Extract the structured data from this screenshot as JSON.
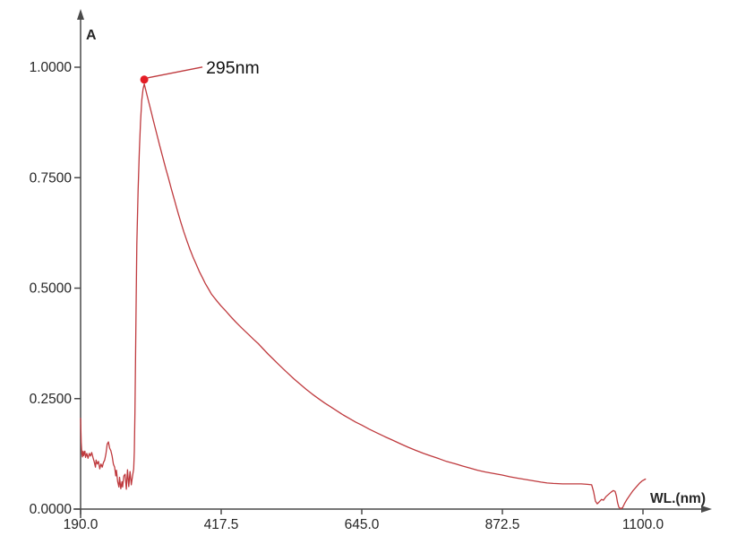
{
  "figure": {
    "background": "#ffffff",
    "description": "UV-Vis absorbance spectrum with peak annotation"
  },
  "chart_data": {
    "type": "line",
    "title": "",
    "xlabel": "WL.(nm)",
    "ylabel": "A",
    "xlim": [
      190,
      1100
    ],
    "ylim": [
      0,
      1.0
    ],
    "grid": false,
    "legend": "none",
    "x_ticks": [
      {
        "value": 190.0,
        "label": "190.0"
      },
      {
        "value": 417.5,
        "label": "417.5"
      },
      {
        "value": 645.0,
        "label": "645.0"
      },
      {
        "value": 872.5,
        "label": "872.5"
      },
      {
        "value": 1100.0,
        "label": "1100.0"
      }
    ],
    "y_ticks": [
      {
        "value": 0.0,
        "label": "0.0000"
      },
      {
        "value": 0.25,
        "label": "0.2500"
      },
      {
        "value": 0.5,
        "label": "0.5000"
      },
      {
        "value": 0.75,
        "label": "0.7500"
      },
      {
        "value": 1.0,
        "label": "1.0000"
      }
    ],
    "annotation": {
      "label": "295nm",
      "peak_wavelength_nm": 295,
      "peak_absorbance": 0.962,
      "marker_x": 293,
      "marker_y": 0.972
    },
    "colors": {
      "axis": "#4a4a4a",
      "tick_label": "#262626",
      "curve": "#bf3a3e",
      "marker": "#e41d25",
      "leader_line": "#bf3a3e",
      "annotation_text": "#111111"
    },
    "series": [
      {
        "name": "absorbance-spectrum",
        "color": "#bf3a3e",
        "points": [
          [
            190,
            0.205
          ],
          [
            191,
            0.15
          ],
          [
            192,
            0.125
          ],
          [
            193,
            0.118
          ],
          [
            194,
            0.131
          ],
          [
            195,
            0.121
          ],
          [
            196,
            0.127
          ],
          [
            197,
            0.131
          ],
          [
            198,
            0.117
          ],
          [
            199,
            0.121
          ],
          [
            200,
            0.126
          ],
          [
            202,
            0.115
          ],
          [
            204,
            0.126
          ],
          [
            206,
            0.12
          ],
          [
            208,
            0.128
          ],
          [
            210,
            0.117
          ],
          [
            212,
            0.107
          ],
          [
            214,
            0.095
          ],
          [
            215,
            0.111
          ],
          [
            217,
            0.102
          ],
          [
            219,
            0.108
          ],
          [
            221,
            0.091
          ],
          [
            223,
            0.102
          ],
          [
            225,
            0.095
          ],
          [
            227,
            0.105
          ],
          [
            229,
            0.111
          ],
          [
            231,
            0.125
          ],
          [
            233,
            0.147
          ],
          [
            235,
            0.152
          ],
          [
            237,
            0.138
          ],
          [
            239,
            0.132
          ],
          [
            241,
            0.12
          ],
          [
            243,
            0.102
          ],
          [
            245,
            0.095
          ],
          [
            247,
            0.075
          ],
          [
            248,
            0.088
          ],
          [
            250,
            0.062
          ],
          [
            252,
            0.05
          ],
          [
            253,
            0.072
          ],
          [
            255,
            0.046
          ],
          [
            257,
            0.062
          ],
          [
            258,
            0.05
          ],
          [
            260,
            0.075
          ],
          [
            262,
            0.079
          ],
          [
            264,
            0.045
          ],
          [
            266,
            0.089
          ],
          [
            268,
            0.051
          ],
          [
            270,
            0.085
          ],
          [
            272,
            0.055
          ],
          [
            274,
            0.075
          ],
          [
            276,
            0.091
          ],
          [
            277,
            0.13
          ],
          [
            278,
            0.22
          ],
          [
            279,
            0.35
          ],
          [
            280,
            0.48
          ],
          [
            281,
            0.6
          ],
          [
            283,
            0.72
          ],
          [
            285,
            0.81
          ],
          [
            287,
            0.875
          ],
          [
            289,
            0.925
          ],
          [
            291,
            0.95
          ],
          [
            293,
            0.962
          ],
          [
            298,
            0.934
          ],
          [
            303,
            0.906
          ],
          [
            308,
            0.878
          ],
          [
            313,
            0.85
          ],
          [
            318,
            0.823
          ],
          [
            323,
            0.796
          ],
          [
            328,
            0.77
          ],
          [
            332,
            0.75
          ],
          [
            337,
            0.724
          ],
          [
            342,
            0.699
          ],
          [
            347,
            0.674
          ],
          [
            352,
            0.65
          ],
          [
            357,
            0.628
          ],
          [
            362,
            0.607
          ],
          [
            367,
            0.588
          ],
          [
            372,
            0.57
          ],
          [
            377,
            0.554
          ],
          [
            382,
            0.538
          ],
          [
            387,
            0.524
          ],
          [
            392,
            0.51
          ],
          [
            397,
            0.498
          ],
          [
            402,
            0.486
          ],
          [
            410,
            0.472
          ],
          [
            417,
            0.46
          ],
          [
            425,
            0.448
          ],
          [
            432,
            0.437
          ],
          [
            440,
            0.425
          ],
          [
            447,
            0.415
          ],
          [
            455,
            0.404
          ],
          [
            462,
            0.395
          ],
          [
            470,
            0.384
          ],
          [
            477,
            0.375
          ],
          [
            485,
            0.363
          ],
          [
            494,
            0.35
          ],
          [
            502,
            0.339
          ],
          [
            510,
            0.328
          ],
          [
            518,
            0.317
          ],
          [
            525,
            0.308
          ],
          [
            535,
            0.295
          ],
          [
            545,
            0.283
          ],
          [
            555,
            0.271
          ],
          [
            565,
            0.26
          ],
          [
            575,
            0.25
          ],
          [
            585,
            0.24
          ],
          [
            595,
            0.231
          ],
          [
            605,
            0.222
          ],
          [
            615,
            0.213
          ],
          [
            625,
            0.205
          ],
          [
            635,
            0.197
          ],
          [
            645,
            0.19
          ],
          [
            657,
            0.181
          ],
          [
            670,
            0.172
          ],
          [
            682,
            0.164
          ],
          [
            695,
            0.156
          ],
          [
            707,
            0.148
          ],
          [
            720,
            0.14
          ],
          [
            732,
            0.133
          ],
          [
            745,
            0.126
          ],
          [
            757,
            0.12
          ],
          [
            770,
            0.114
          ],
          [
            782,
            0.108
          ],
          [
            795,
            0.103
          ],
          [
            807,
            0.098
          ],
          [
            820,
            0.093
          ],
          [
            832,
            0.088
          ],
          [
            845,
            0.084
          ],
          [
            857,
            0.081
          ],
          [
            872,
            0.077
          ],
          [
            885,
            0.073
          ],
          [
            897,
            0.07
          ],
          [
            910,
            0.067
          ],
          [
            922,
            0.064
          ],
          [
            935,
            0.061
          ],
          [
            945,
            0.059
          ],
          [
            955,
            0.058
          ],
          [
            970,
            0.057
          ],
          [
            985,
            0.057
          ],
          [
            1000,
            0.057
          ],
          [
            1010,
            0.056
          ],
          [
            1017,
            0.055
          ],
          [
            1020,
            0.04
          ],
          [
            1023,
            0.018
          ],
          [
            1026,
            0.012
          ],
          [
            1029,
            0.016
          ],
          [
            1033,
            0.022
          ],
          [
            1036,
            0.02
          ],
          [
            1040,
            0.028
          ],
          [
            1044,
            0.033
          ],
          [
            1048,
            0.038
          ],
          [
            1052,
            0.042
          ],
          [
            1055,
            0.04
          ],
          [
            1057,
            0.03
          ],
          [
            1059,
            0.014
          ],
          [
            1061,
            0.004
          ],
          [
            1064,
            0.001
          ],
          [
            1067,
            0.003
          ],
          [
            1070,
            0.012
          ],
          [
            1074,
            0.022
          ],
          [
            1079,
            0.032
          ],
          [
            1084,
            0.042
          ],
          [
            1089,
            0.05
          ],
          [
            1094,
            0.058
          ],
          [
            1099,
            0.064
          ],
          [
            1104,
            0.068
          ]
        ]
      }
    ]
  }
}
